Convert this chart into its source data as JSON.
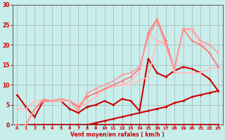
{
  "background_color": "#c8eeec",
  "grid_color": "#999999",
  "xlabel": "Vent moyen/en rafales ( km/h )",
  "xlim": [
    -0.5,
    23.5
  ],
  "ylim": [
    0,
    30
  ],
  "yticks": [
    0,
    5,
    10,
    15,
    20,
    25,
    30
  ],
  "xticks": [
    0,
    1,
    2,
    3,
    4,
    5,
    6,
    7,
    8,
    9,
    10,
    11,
    12,
    13,
    14,
    15,
    16,
    17,
    18,
    19,
    20,
    21,
    22,
    23
  ],
  "lines": [
    {
      "x": [
        0,
        1,
        2,
        3,
        4,
        5,
        6,
        7,
        8,
        9,
        10,
        11,
        12,
        13,
        14,
        15,
        16,
        17,
        18,
        19,
        20,
        21,
        22,
        23
      ],
      "y": [
        0,
        0,
        0,
        0,
        0,
        0,
        0,
        0,
        0,
        0,
        0,
        0,
        0,
        0,
        0,
        0,
        0,
        0,
        0,
        0,
        0,
        0,
        0,
        0
      ],
      "color": "#cc0000",
      "lw": 2.2,
      "marker": true
    },
    {
      "x": [
        0,
        1,
        2,
        3,
        4,
        5,
        6,
        7,
        8,
        9,
        10,
        11,
        12,
        13,
        14,
        15,
        16,
        17,
        18,
        19,
        20,
        21,
        22,
        23
      ],
      "y": [
        0,
        0,
        0,
        0,
        0,
        0,
        0,
        0,
        0,
        0.5,
        1,
        1.5,
        2,
        2.5,
        3,
        3.5,
        4,
        4.5,
        5.5,
        6,
        7,
        7.5,
        8,
        8.5
      ],
      "color": "#cc0000",
      "lw": 1.5,
      "marker": true
    },
    {
      "x": [
        0,
        1,
        2,
        3,
        4,
        5,
        6,
        7,
        8,
        9,
        10,
        11,
        12,
        13,
        14,
        15,
        16,
        17,
        18,
        19,
        20,
        21,
        22,
        23
      ],
      "y": [
        7.5,
        4.5,
        2,
        6,
        6,
        6,
        4,
        3,
        4.5,
        5,
        6,
        5,
        6.5,
        6,
        3.5,
        16.5,
        13,
        12,
        13.5,
        14.5,
        14,
        13,
        11.5,
        8.5
      ],
      "color": "#cc0000",
      "lw": 1.5,
      "marker": true
    },
    {
      "x": [
        0,
        1,
        2,
        3,
        4,
        5,
        6,
        7,
        8,
        9,
        10,
        11,
        12,
        13,
        14,
        15,
        16,
        17,
        18,
        19,
        20,
        21,
        22,
        23
      ],
      "y": [
        4,
        4,
        6,
        6,
        6,
        6,
        6,
        4.5,
        5.5,
        7,
        9,
        9.5,
        10,
        10,
        11,
        12,
        21,
        20,
        13,
        13,
        13,
        13,
        14,
        14.5
      ],
      "color": "#ffbbbb",
      "lw": 1.2,
      "marker": true
    },
    {
      "x": [
        0,
        1,
        2,
        3,
        4,
        5,
        6,
        7,
        8,
        9,
        10,
        11,
        12,
        13,
        14,
        15,
        16,
        17,
        18,
        19,
        20,
        21,
        22,
        23
      ],
      "y": [
        0,
        0,
        4,
        6,
        6,
        6,
        6,
        5,
        7,
        8,
        9,
        9.5,
        10,
        11,
        13,
        23,
        21,
        20.5,
        13.5,
        24,
        23.5,
        20.5,
        18,
        14.5
      ],
      "color": "#ffbbbb",
      "lw": 1.2,
      "marker": true
    },
    {
      "x": [
        0,
        1,
        2,
        3,
        4,
        5,
        6,
        7,
        8,
        9,
        10,
        11,
        12,
        13,
        14,
        15,
        16,
        17,
        18,
        19,
        20,
        21,
        22,
        23
      ],
      "y": [
        0,
        0,
        4,
        6,
        6,
        6.5,
        6,
        4.5,
        7,
        8,
        9,
        10,
        11,
        12,
        14,
        23,
        26.5,
        21,
        14,
        24,
        21,
        20,
        18,
        14.5
      ],
      "color": "#ff7777",
      "lw": 1.2,
      "marker": true
    },
    {
      "x": [
        0,
        1,
        2,
        3,
        4,
        5,
        6,
        7,
        8,
        9,
        10,
        11,
        12,
        13,
        14,
        15,
        16,
        17,
        18,
        19,
        20,
        21,
        22,
        23
      ],
      "y": [
        0,
        0,
        4,
        6.5,
        6,
        6.5,
        6,
        3.5,
        8,
        9,
        10,
        11,
        12.5,
        13,
        14.5,
        22,
        26,
        20,
        14,
        24,
        24,
        21,
        20,
        18
      ],
      "color": "#ff9999",
      "lw": 1.2,
      "marker": true
    }
  ]
}
